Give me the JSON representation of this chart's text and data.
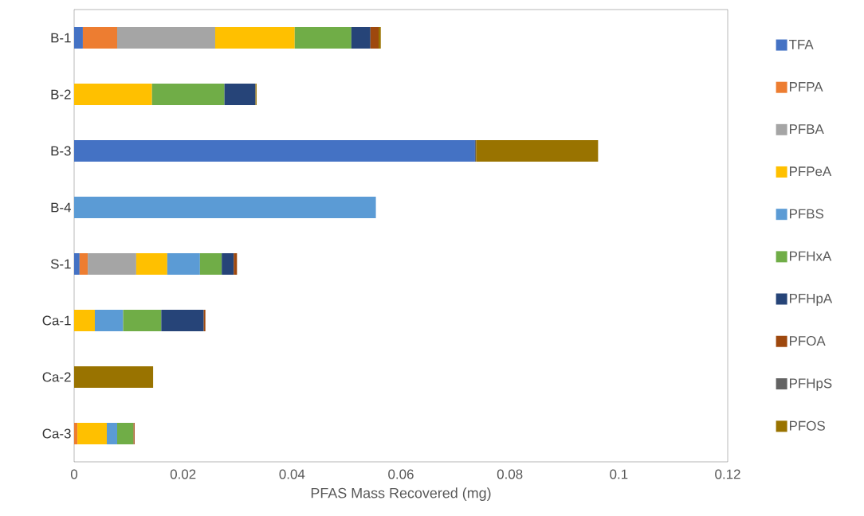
{
  "chart_data": {
    "type": "bar",
    "orientation": "horizontal",
    "stacked": true,
    "xlabel": "PFAS Mass Recovered (mg)",
    "categories": [
      "B-1",
      "B-2",
      "B-3",
      "B-4",
      "S-1",
      "Ca-1",
      "Ca-2",
      "Ca-3"
    ],
    "xlim": [
      0,
      0.12
    ],
    "xticks": [
      0,
      0.02,
      0.04,
      0.06,
      0.08,
      0.1,
      0.12
    ],
    "grid": false,
    "legend": "right",
    "series": [
      {
        "name": "TFA",
        "color": "#4472c4",
        "values": [
          0.0016,
          null,
          0.0736,
          null,
          0.001,
          null,
          null,
          null
        ]
      },
      {
        "name": "PFPA",
        "color": "#ed7d31",
        "values": [
          0.0063,
          null,
          null,
          null,
          0.0015,
          null,
          null,
          0.0006
        ]
      },
      {
        "name": "PFBA",
        "color": "#a5a5a5",
        "values": [
          0.018,
          null,
          null,
          null,
          0.0089,
          null,
          null,
          null
        ]
      },
      {
        "name": "PFPeA",
        "color": "#ffc000",
        "values": [
          0.0146,
          0.0143,
          null,
          null,
          0.0057,
          0.0038,
          null,
          0.0054
        ]
      },
      {
        "name": "PFBS",
        "color": "#5b9bd5",
        "values": [
          null,
          null,
          null,
          0.0554,
          0.006,
          0.0052,
          null,
          0.0019
        ]
      },
      {
        "name": "PFHxA",
        "color": "#70ad47",
        "values": [
          0.0104,
          0.0133,
          null,
          null,
          0.004,
          0.007,
          null,
          0.003
        ]
      },
      {
        "name": "PFHpA",
        "color": "#264478",
        "values": [
          0.0035,
          0.0057,
          null,
          null,
          0.0022,
          0.0078,
          null,
          null
        ]
      },
      {
        "name": "PFOA",
        "color": "#9e480e",
        "values": [
          0.0015,
          null,
          null,
          null,
          0.0006,
          0.0003,
          null,
          0.0002
        ]
      },
      {
        "name": "PFHpS",
        "color": "#636363",
        "values": [
          null,
          null,
          0.0002,
          null,
          null,
          null,
          null,
          null
        ]
      },
      {
        "name": "PFOS",
        "color": "#997300",
        "values": [
          0.0004,
          0.0002,
          0.0224,
          null,
          null,
          null,
          0.0145,
          null
        ]
      }
    ]
  }
}
